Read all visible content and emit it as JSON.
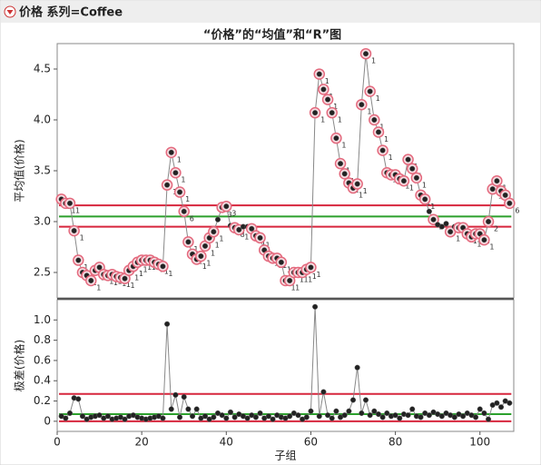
{
  "header": {
    "title": "价格 系列=Coffee"
  },
  "title": "“价格”的“均值”和“R”图",
  "chart_data": [
    {
      "type": "control",
      "ylabel": "平均值(价格)",
      "xlim": [
        0,
        108
      ],
      "ylim": [
        2.25,
        4.75
      ],
      "yticks": [
        2.5,
        {
          "value": 3,
          "label": "3.0"
        },
        3.5,
        {
          "value": 4,
          "label": "4.0"
        },
        4.5
      ],
      "color": "#222222",
      "flag_color": "#e46a7e",
      "limits": [
        {
          "value": 3.16,
          "color": "#d7263d"
        },
        {
          "value": 3.05,
          "color": "#2ca02c"
        },
        {
          "value": 2.95,
          "color": "#d7263d"
        }
      ],
      "x": [
        1,
        2,
        3,
        4,
        5,
        6,
        7,
        8,
        9,
        10,
        11,
        12,
        13,
        14,
        15,
        16,
        17,
        18,
        19,
        20,
        21,
        22,
        23,
        24,
        25,
        26,
        27,
        28,
        29,
        30,
        31,
        32,
        33,
        34,
        35,
        36,
        37,
        38,
        39,
        40,
        41,
        42,
        43,
        44,
        45,
        46,
        47,
        48,
        49,
        50,
        51,
        52,
        53,
        54,
        55,
        56,
        57,
        58,
        59,
        60,
        61,
        62,
        63,
        64,
        65,
        66,
        67,
        68,
        69,
        70,
        71,
        72,
        73,
        74,
        75,
        76,
        77,
        78,
        79,
        80,
        81,
        82,
        83,
        84,
        85,
        86,
        87,
        88,
        89,
        90,
        91,
        92,
        93,
        94,
        95,
        96,
        97,
        98,
        99,
        100,
        101,
        102,
        103,
        104,
        105,
        106,
        107
      ],
      "values": [
        3.22,
        3.18,
        3.18,
        2.91,
        2.62,
        2.5,
        2.47,
        2.42,
        2.52,
        2.55,
        2.48,
        2.47,
        2.48,
        2.46,
        2.45,
        2.44,
        2.52,
        2.56,
        2.6,
        2.62,
        2.62,
        2.62,
        2.6,
        2.58,
        2.56,
        3.36,
        3.68,
        3.48,
        3.29,
        3.1,
        2.8,
        2.68,
        2.63,
        2.66,
        2.76,
        2.84,
        2.9,
        3.02,
        3.14,
        3.15,
        2.96,
        2.94,
        2.92,
        2.95,
        2.95,
        2.93,
        2.86,
        2.84,
        2.72,
        2.66,
        2.64,
        2.64,
        2.6,
        2.42,
        2.42,
        2.5,
        2.5,
        2.5,
        2.53,
        2.55,
        4.07,
        4.45,
        4.3,
        4.2,
        4.07,
        3.82,
        3.57,
        3.47,
        3.38,
        3.33,
        3.37,
        4.15,
        4.65,
        4.28,
        4.0,
        3.88,
        3.7,
        3.48,
        3.46,
        3.46,
        3.42,
        3.4,
        3.61,
        3.52,
        3.43,
        3.26,
        3.22,
        3.1,
        3.02,
        2.97,
        2.95,
        2.98,
        2.9,
        2.95,
        2.94,
        2.94,
        2.88,
        2.85,
        2.88,
        2.88,
        2.82,
        3.0,
        3.32,
        3.4,
        3.3,
        3.26,
        3.18
      ],
      "test_labels": [
        "1",
        "1",
        "1",
        "1",
        "1",
        "1",
        "1",
        "1",
        "1",
        "1",
        "1",
        "1",
        "1",
        "1",
        "1",
        "1",
        "1",
        "1",
        "1",
        "1",
        "1",
        "1",
        "1",
        "1",
        "1",
        "1",
        "1",
        "1",
        "1",
        "6",
        "1",
        "1",
        "1",
        "1",
        "1",
        "1",
        "1",
        null,
        "3",
        "3",
        null,
        "8",
        "1",
        null,
        null,
        "1",
        "1",
        "1",
        "1",
        "1",
        "1",
        "1",
        "1",
        "1",
        "1",
        "1",
        "1",
        "1",
        "1",
        "1",
        "1",
        "1",
        "1",
        "1",
        "1",
        "1",
        "1",
        "1",
        "1",
        "1",
        "1",
        "1",
        "1",
        "1",
        "1",
        "1",
        "1",
        "1",
        "1",
        "1",
        "1",
        "1",
        "1",
        "1",
        "1",
        "1",
        "1",
        null,
        "3",
        null,
        null,
        null,
        "1",
        null,
        "5",
        "5",
        "1",
        "1",
        "1",
        "1",
        "1",
        "2",
        "1",
        "1",
        "1",
        "1",
        "6"
      ]
    },
    {
      "type": "control",
      "ylabel": "极差(价格)",
      "xlabel": "子组",
      "xlim": [
        0,
        108
      ],
      "xticks": [
        0,
        20,
        40,
        60,
        80,
        100
      ],
      "ylim": [
        -0.1,
        1.2
      ],
      "yticks": [
        0,
        0.2,
        0.4,
        0.6,
        0.8,
        {
          "value": 1,
          "label": "1.0"
        }
      ],
      "color": "#222222",
      "limits": [
        {
          "value": 0.27,
          "color": "#d7263d"
        },
        {
          "value": 0.07,
          "color": "#2ca02c"
        },
        {
          "value": 0,
          "color": "#d7263d"
        }
      ],
      "x": [
        1,
        2,
        3,
        4,
        5,
        6,
        7,
        8,
        9,
        10,
        11,
        12,
        13,
        14,
        15,
        16,
        17,
        18,
        19,
        20,
        21,
        22,
        23,
        24,
        25,
        26,
        27,
        28,
        29,
        30,
        31,
        32,
        33,
        34,
        35,
        36,
        37,
        38,
        39,
        40,
        41,
        42,
        43,
        44,
        45,
        46,
        47,
        48,
        49,
        50,
        51,
        52,
        53,
        54,
        55,
        56,
        57,
        58,
        59,
        60,
        61,
        62,
        63,
        64,
        65,
        66,
        67,
        68,
        69,
        70,
        71,
        72,
        73,
        74,
        75,
        76,
        77,
        78,
        79,
        80,
        81,
        82,
        83,
        84,
        85,
        86,
        87,
        88,
        89,
        90,
        91,
        92,
        93,
        94,
        95,
        96,
        97,
        98,
        99,
        100,
        101,
        102,
        103,
        104,
        105,
        106,
        107
      ],
      "values": [
        0.05,
        0.03,
        0.08,
        0.23,
        0.22,
        0.05,
        0.02,
        0.04,
        0.05,
        0.06,
        0.03,
        0.05,
        0.02,
        0.03,
        0.04,
        0.02,
        0.05,
        0.06,
        0.04,
        0.03,
        0.02,
        0.03,
        0.04,
        0.05,
        0.03,
        0.96,
        0.12,
        0.26,
        0.04,
        0.24,
        0.12,
        0.05,
        0.12,
        0.03,
        0.05,
        0.02,
        0.04,
        0.08,
        0.06,
        0.03,
        0.09,
        0.04,
        0.07,
        0.05,
        0.03,
        0.06,
        0.04,
        0.08,
        0.03,
        0.05,
        0.02,
        0.06,
        0.04,
        0.03,
        0.05,
        0.08,
        0.06,
        0.02,
        0.04,
        0.1,
        1.13,
        0.05,
        0.29,
        0.06,
        0.03,
        0.1,
        0.04,
        0.06,
        0.1,
        0.21,
        0.53,
        0.08,
        0.21,
        0.06,
        0.1,
        0.07,
        0.04,
        0.08,
        0.05,
        0.06,
        0.03,
        0.07,
        0.06,
        0.12,
        0.05,
        0.04,
        0.08,
        0.06,
        0.09,
        0.07,
        0.05,
        0.08,
        0.06,
        0.04,
        0.07,
        0.05,
        0.08,
        0.06,
        0.04,
        0.12,
        0.08,
        0.02,
        0.16,
        0.18,
        0.14,
        0.2,
        0.18
      ]
    }
  ]
}
